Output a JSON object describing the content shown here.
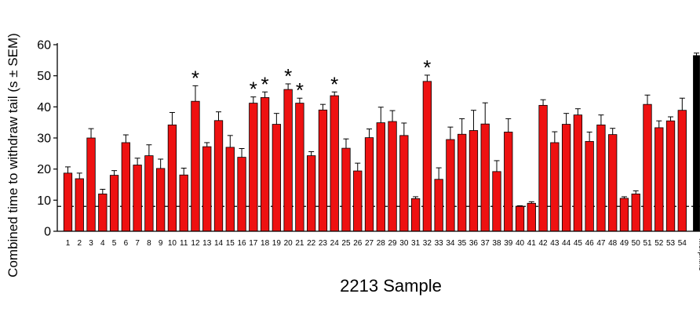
{
  "chart_data": {
    "type": "bar",
    "xlabel": "2213 Sample",
    "ylabel": "Combined time to withdraw tail (s ± SEM)",
    "ylim": [
      0,
      60
    ],
    "yticks": [
      0,
      10,
      20,
      30,
      40,
      50,
      60
    ],
    "reference_line": 8,
    "categories": [
      "1",
      "2",
      "3",
      "4",
      "5",
      "6",
      "7",
      "8",
      "9",
      "10",
      "11",
      "12",
      "13",
      "14",
      "15",
      "16",
      "17",
      "18",
      "19",
      "20",
      "21",
      "22",
      "23",
      "24",
      "25",
      "26",
      "27",
      "28",
      "29",
      "30",
      "31",
      "32",
      "33",
      "34",
      "35",
      "36",
      "37",
      "38",
      "39",
      "40",
      "41",
      "42",
      "43",
      "44",
      "45",
      "46",
      "47",
      "48",
      "49",
      "50",
      "51",
      "52",
      "53",
      "54",
      "Morphine"
    ],
    "values": [
      18.7,
      16.9,
      30.0,
      12.0,
      18.0,
      28.5,
      21.3,
      24.3,
      20.2,
      34.2,
      18.1,
      41.8,
      27.2,
      35.6,
      27.0,
      23.8,
      41.2,
      43.0,
      34.4,
      45.6,
      41.2,
      24.3,
      39.0,
      43.6,
      26.7,
      19.4,
      30.1,
      34.9,
      35.3,
      30.8,
      10.5,
      48.2,
      16.7,
      29.5,
      31.2,
      32.4,
      34.5,
      19.2,
      31.9,
      8.0,
      9.0,
      40.5,
      28.5,
      34.4,
      37.4,
      28.9,
      34.2,
      31.1,
      10.6,
      12.0,
      40.8,
      33.3,
      35.5,
      38.9,
      56.5
    ],
    "errors": [
      2.0,
      1.8,
      3.0,
      1.5,
      1.5,
      2.5,
      2.2,
      3.5,
      3.0,
      4.0,
      2.2,
      5.0,
      1.3,
      2.8,
      3.8,
      2.8,
      2.0,
      1.8,
      3.5,
      1.8,
      1.6,
      1.3,
      1.8,
      1.2,
      3.0,
      2.5,
      2.8,
      5.0,
      3.5,
      4.0,
      0.6,
      2.0,
      3.7,
      4.0,
      5.0,
      6.5,
      6.8,
      3.5,
      4.3,
      0.2,
      0.5,
      1.8,
      3.5,
      3.5,
      2.0,
      3.0,
      3.2,
      2.0,
      0.5,
      1.0,
      3.0,
      2.2,
      1.3,
      3.9,
      0.8
    ],
    "significant": [
      12,
      17,
      18,
      20,
      21,
      24,
      32
    ],
    "colors": {
      "bar": "#ee1111",
      "control_bar": "#000000",
      "line": "#000000"
    }
  }
}
